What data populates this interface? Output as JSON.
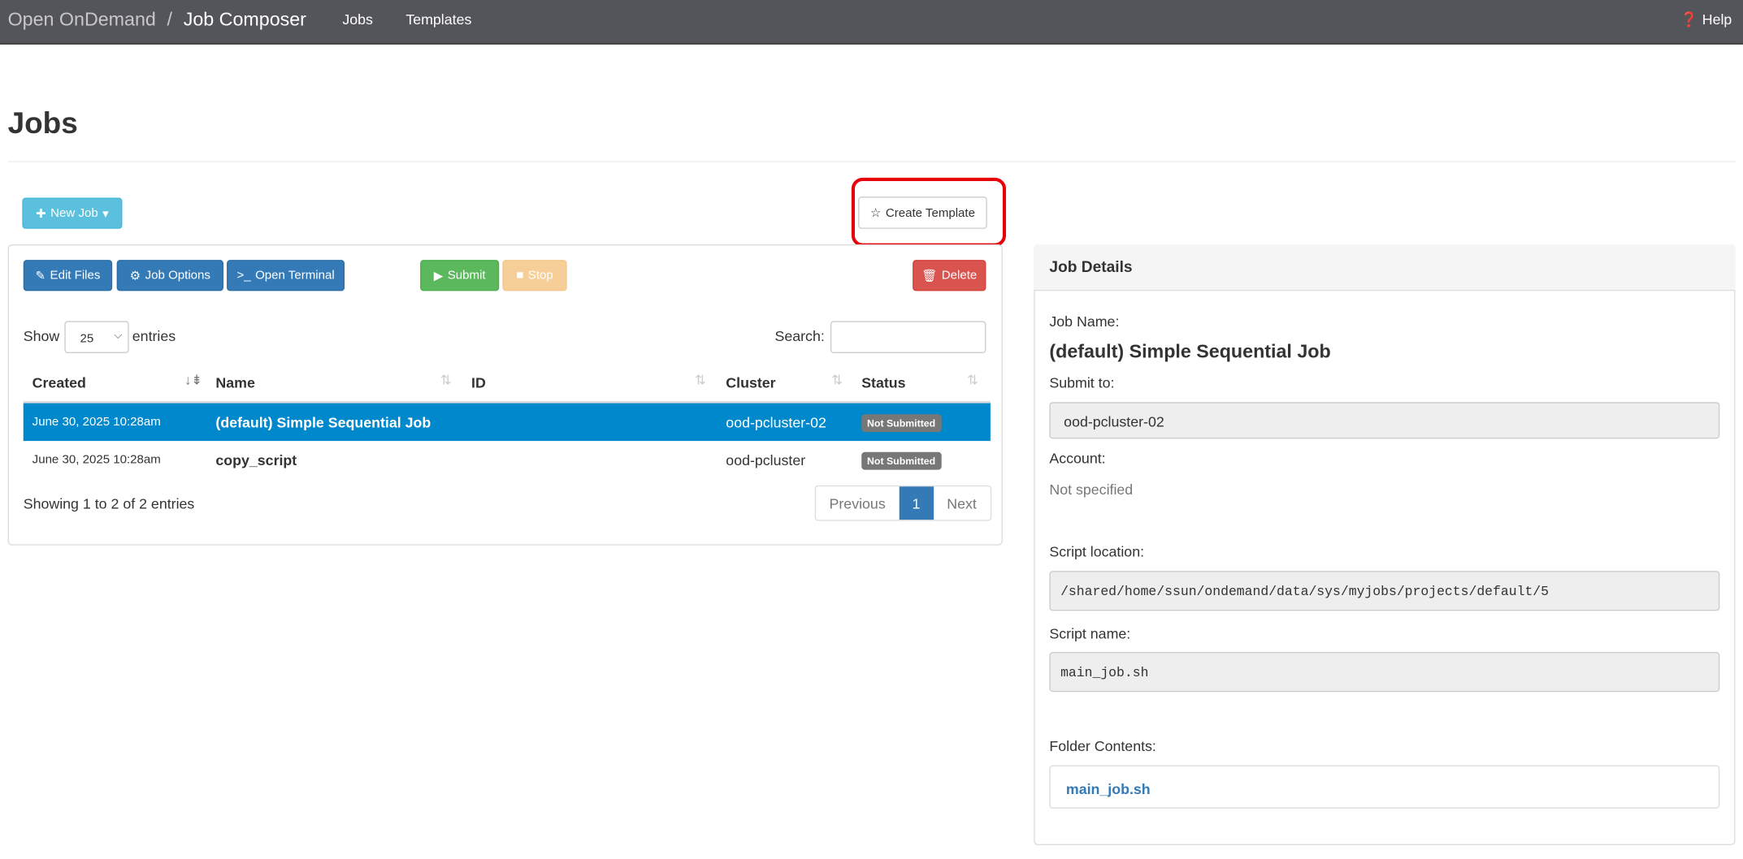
{
  "navbar": {
    "brand": "Open OnDemand",
    "separator": "/",
    "app": "Job Composer",
    "links": [
      "Jobs",
      "Templates"
    ],
    "help": "Help"
  },
  "page_title": "Jobs",
  "toolbar": {
    "new_job": "New Job",
    "create_template": "Create Template"
  },
  "actions": {
    "edit_files": "Edit Files",
    "job_options": "Job Options",
    "open_terminal": "Open Terminal",
    "submit": "Submit",
    "stop": "Stop",
    "delete": "Delete"
  },
  "table_controls": {
    "show": "Show",
    "page_size": "25",
    "entries": "entries",
    "search_label": "Search:",
    "search_value": ""
  },
  "table": {
    "columns": [
      "Created",
      "Name",
      "ID",
      "Cluster",
      "Status"
    ],
    "rows": [
      {
        "created": "June 30, 2025 10:28am",
        "name": "(default) Simple Sequential Job",
        "id": "",
        "cluster": "ood-pcluster-02",
        "status": "Not Submitted",
        "selected": true
      },
      {
        "created": "June 30, 2025 10:28am",
        "name": "copy_script",
        "id": "",
        "cluster": "ood-pcluster",
        "status": "Not Submitted",
        "selected": false
      }
    ]
  },
  "info": "Showing 1 to 2 of 2 entries",
  "pagination": {
    "previous": "Previous",
    "current": "1",
    "next": "Next"
  },
  "details": {
    "header": "Job Details",
    "job_name_label": "Job Name:",
    "job_name": "(default) Simple Sequential Job",
    "submit_to_label": "Submit to:",
    "submit_to": "ood-pcluster-02",
    "account_label": "Account:",
    "account": "Not specified",
    "script_location_label": "Script location:",
    "script_location": "/shared/home/ssun/ondemand/data/sys/myjobs/projects/default/5",
    "script_name_label": "Script name:",
    "script_name": "main_job.sh",
    "folder_contents_label": "Folder Contents:",
    "folder_contents": [
      "main_job.sh"
    ]
  },
  "colors": {
    "navbar": "#54555a",
    "selected_row": "#0088cc",
    "highlight": "#e8000b",
    "primary": "#337ab7"
  }
}
